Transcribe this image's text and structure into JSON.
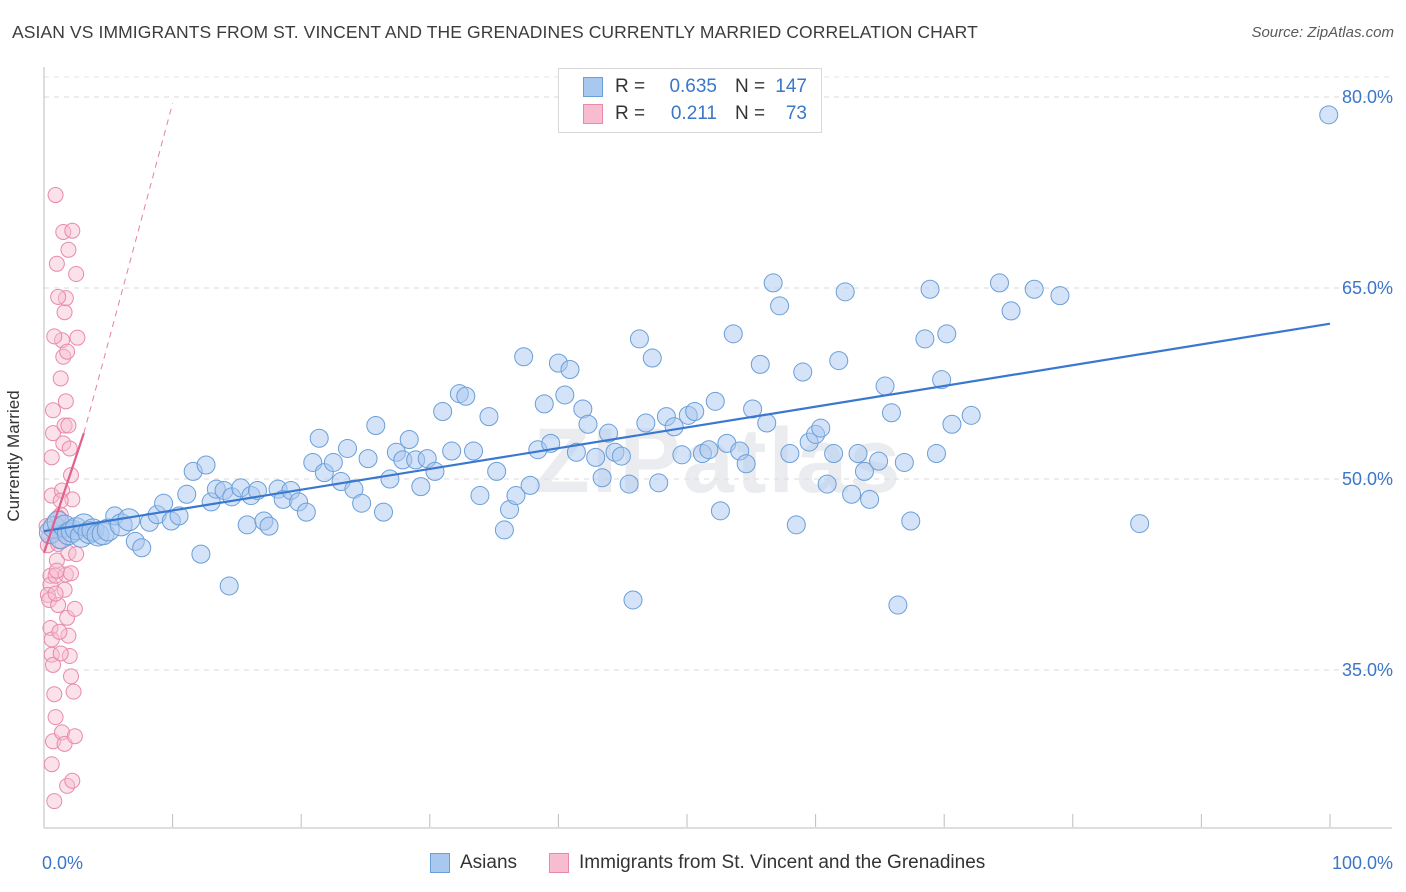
{
  "header": {
    "title": "ASIAN VS IMMIGRANTS FROM ST. VINCENT AND THE GRENADINES CURRENTLY MARRIED CORRELATION CHART",
    "source": "Source: ZipAtlas.com"
  },
  "legend_top": [
    {
      "r_label": "R =",
      "r_value": "0.635",
      "n_label": "N =",
      "n_value": "147",
      "color": "#a9c8f0",
      "edge": "#6a9fd8"
    },
    {
      "r_label": "R =",
      "r_value": "0.211",
      "n_label": "N =",
      "n_value": "73",
      "color": "#f7bcd0",
      "edge": "#e88aab"
    }
  ],
  "legend_bottom": [
    {
      "label": "Asians",
      "color": "#a9c8f0",
      "edge": "#6a9fd8"
    },
    {
      "label": "Immigrants from St. Vincent and the Grenadines",
      "color": "#f7bcd0",
      "edge": "#e88aab"
    }
  ],
  "watermark": "ZIPatlas",
  "chart_data": {
    "type": "scatter",
    "title": "ASIAN VS IMMIGRANTS FROM ST. VINCENT AND THE GRENADINES CURRENTLY MARRIED CORRELATION CHART",
    "xlabel": "",
    "ylabel": "Currently Married",
    "xlim": [
      0,
      100
    ],
    "ylim": [
      22,
      83
    ],
    "x_ticklabels": [
      "0.0%",
      "100.0%"
    ],
    "y_ticks": [
      35,
      50,
      65,
      80
    ],
    "y_ticklabels": [
      "35.0%",
      "50.0%",
      "65.0%",
      "80.0%"
    ],
    "grid": "horizontal dashed",
    "legend_position": "top-center",
    "colors": {
      "blue_fill": "#a9c8f0",
      "blue_edge": "#6a9fd8",
      "blue_line": "#3a78d0",
      "pink_fill": "#f7bcd0",
      "pink_edge": "#e88aab",
      "pink_line": "#e0608e",
      "tick_label": "#3b76c8"
    },
    "series": [
      {
        "name": "Asians",
        "trend": [
          [
            0,
            45.9
          ],
          [
            100,
            62.2
          ]
        ],
        "points": [
          [
            0.5,
            45.8,
            2
          ],
          [
            0.8,
            46.2,
            2
          ],
          [
            1.1,
            46.6,
            2
          ],
          [
            1.3,
            45.4,
            2
          ],
          [
            1.6,
            46.3,
            2
          ],
          [
            1.9,
            45.7,
            2
          ],
          [
            2.2,
            45.9,
            2
          ],
          [
            2.5,
            46.1,
            2
          ],
          [
            2.9,
            45.5,
            2
          ],
          [
            3.1,
            46.4,
            2
          ],
          [
            3.5,
            45.8,
            2
          ],
          [
            3.8,
            46.0,
            2
          ],
          [
            4.2,
            45.6,
            2
          ],
          [
            4.6,
            45.7,
            2
          ],
          [
            5.0,
            46.0,
            2
          ],
          [
            5.5,
            47.1,
            1
          ],
          [
            6.0,
            46.4,
            2
          ],
          [
            6.6,
            46.8,
            2
          ],
          [
            7.1,
            45.1,
            1
          ],
          [
            7.6,
            44.6,
            1
          ],
          [
            8.2,
            46.6,
            1
          ],
          [
            8.8,
            47.2,
            1
          ],
          [
            9.3,
            48.1,
            1
          ],
          [
            9.9,
            46.7,
            1
          ],
          [
            10.5,
            47.1,
            1
          ],
          [
            11.1,
            48.8,
            1
          ],
          [
            11.6,
            50.6,
            1
          ],
          [
            12.2,
            44.1,
            1
          ],
          [
            12.6,
            51.1,
            1
          ],
          [
            13.0,
            48.2,
            1
          ],
          [
            13.4,
            49.2,
            1
          ],
          [
            14.0,
            49.1,
            1
          ],
          [
            14.6,
            48.6,
            1
          ],
          [
            14.4,
            41.6,
            1
          ],
          [
            15.3,
            49.3,
            1
          ],
          [
            15.8,
            46.4,
            1
          ],
          [
            16.1,
            48.7,
            1
          ],
          [
            16.6,
            49.1,
            1
          ],
          [
            17.1,
            46.7,
            1
          ],
          [
            17.5,
            46.3,
            1
          ],
          [
            18.2,
            49.2,
            1
          ],
          [
            18.6,
            48.4,
            1
          ],
          [
            19.2,
            49.1,
            1
          ],
          [
            19.8,
            48.2,
            1
          ],
          [
            20.4,
            47.4,
            1
          ],
          [
            20.9,
            51.3,
            1
          ],
          [
            21.4,
            53.2,
            1
          ],
          [
            21.8,
            50.5,
            1
          ],
          [
            22.5,
            51.3,
            1
          ],
          [
            23.1,
            49.8,
            1
          ],
          [
            23.6,
            52.4,
            1
          ],
          [
            24.1,
            49.2,
            1
          ],
          [
            24.7,
            48.1,
            1
          ],
          [
            25.2,
            51.6,
            1
          ],
          [
            25.8,
            54.2,
            1
          ],
          [
            26.4,
            47.4,
            1
          ],
          [
            26.9,
            50.0,
            1
          ],
          [
            27.4,
            52.1,
            1
          ],
          [
            27.9,
            51.5,
            1
          ],
          [
            28.4,
            53.1,
            1
          ],
          [
            28.9,
            51.5,
            1
          ],
          [
            29.3,
            49.4,
            1
          ],
          [
            29.8,
            51.6,
            1
          ],
          [
            30.4,
            50.6,
            1
          ],
          [
            31.0,
            55.3,
            1
          ],
          [
            31.7,
            52.2,
            1
          ],
          [
            32.3,
            56.7,
            1
          ],
          [
            32.8,
            56.5,
            1
          ],
          [
            33.4,
            52.2,
            1
          ],
          [
            33.9,
            48.7,
            1
          ],
          [
            34.6,
            54.9,
            1
          ],
          [
            35.2,
            50.6,
            1
          ],
          [
            35.8,
            46.0,
            1
          ],
          [
            36.2,
            47.6,
            1
          ],
          [
            36.7,
            48.7,
            1
          ],
          [
            37.3,
            59.6,
            1
          ],
          [
            37.8,
            49.5,
            1
          ],
          [
            38.4,
            52.3,
            1
          ],
          [
            38.9,
            55.9,
            1
          ],
          [
            39.4,
            52.8,
            1
          ],
          [
            40.0,
            59.1,
            1
          ],
          [
            40.5,
            56.6,
            1
          ],
          [
            40.9,
            58.6,
            1
          ],
          [
            41.4,
            52.1,
            1
          ],
          [
            41.9,
            55.5,
            1
          ],
          [
            42.3,
            54.3,
            1
          ],
          [
            42.9,
            51.7,
            1
          ],
          [
            43.4,
            50.1,
            1
          ],
          [
            43.9,
            53.6,
            1
          ],
          [
            44.4,
            52.1,
            1
          ],
          [
            44.9,
            51.8,
            1
          ],
          [
            45.5,
            49.6,
            1
          ],
          [
            45.8,
            40.5,
            1
          ],
          [
            46.3,
            61.0,
            1
          ],
          [
            46.8,
            54.4,
            1
          ],
          [
            47.3,
            59.5,
            1
          ],
          [
            47.8,
            49.7,
            1
          ],
          [
            48.4,
            54.9,
            1
          ],
          [
            49.0,
            54.1,
            1
          ],
          [
            49.6,
            51.9,
            1
          ],
          [
            50.1,
            55.0,
            1
          ],
          [
            50.6,
            55.3,
            1
          ],
          [
            51.2,
            52.0,
            1
          ],
          [
            51.7,
            52.3,
            1
          ],
          [
            52.2,
            56.1,
            1
          ],
          [
            52.6,
            47.5,
            1
          ],
          [
            53.1,
            52.8,
            1
          ],
          [
            53.6,
            61.4,
            1
          ],
          [
            54.1,
            52.2,
            1
          ],
          [
            54.6,
            51.2,
            1
          ],
          [
            55.1,
            55.5,
            1
          ],
          [
            55.7,
            59.0,
            1
          ],
          [
            56.2,
            54.4,
            1
          ],
          [
            56.7,
            65.4,
            1
          ],
          [
            57.2,
            63.6,
            1
          ],
          [
            58.0,
            52.0,
            1
          ],
          [
            58.5,
            46.4,
            1
          ],
          [
            59.0,
            58.4,
            1
          ],
          [
            59.5,
            52.9,
            1
          ],
          [
            60.0,
            53.5,
            1
          ],
          [
            60.4,
            54.0,
            1
          ],
          [
            60.9,
            49.6,
            1
          ],
          [
            61.4,
            52.0,
            1
          ],
          [
            61.8,
            59.3,
            1
          ],
          [
            62.3,
            64.7,
            1
          ],
          [
            62.8,
            48.8,
            1
          ],
          [
            63.3,
            52.0,
            1
          ],
          [
            63.8,
            50.6,
            1
          ],
          [
            64.2,
            48.4,
            1
          ],
          [
            64.9,
            51.4,
            1
          ],
          [
            65.4,
            57.3,
            1
          ],
          [
            65.9,
            55.2,
            1
          ],
          [
            66.4,
            40.1,
            1
          ],
          [
            66.9,
            51.3,
            1
          ],
          [
            67.4,
            46.7,
            1
          ],
          [
            68.5,
            61.0,
            1
          ],
          [
            68.9,
            64.9,
            1
          ],
          [
            69.4,
            52.0,
            1
          ],
          [
            69.8,
            57.8,
            1
          ],
          [
            70.2,
            61.4,
            1
          ],
          [
            70.6,
            54.3,
            1
          ],
          [
            72.1,
            55.0,
            1
          ],
          [
            74.3,
            65.4,
            1
          ],
          [
            75.2,
            63.2,
            1
          ],
          [
            77.0,
            64.9,
            1
          ],
          [
            79.0,
            64.4,
            1
          ],
          [
            85.2,
            46.5,
            1
          ],
          [
            99.9,
            78.6,
            1
          ]
        ]
      },
      {
        "name": "Immigrants from St. Vincent and the Grenadines",
        "trend": [
          [
            0,
            44.2
          ],
          [
            3.1,
            53.6
          ]
        ],
        "trend_extension": [
          [
            3.1,
            53.6
          ],
          [
            10.0,
            79.5
          ]
        ],
        "points": [
          [
            0.2,
            46.3
          ],
          [
            0.3,
            44.8
          ],
          [
            0.4,
            45.5
          ],
          [
            0.5,
            42.4
          ],
          [
            0.5,
            41.7
          ],
          [
            0.6,
            48.7
          ],
          [
            0.6,
            51.7
          ],
          [
            0.7,
            53.6
          ],
          [
            0.7,
            55.4
          ],
          [
            0.3,
            40.9
          ],
          [
            0.4,
            40.5
          ],
          [
            0.5,
            38.3
          ],
          [
            0.6,
            37.4
          ],
          [
            0.6,
            36.2
          ],
          [
            0.7,
            35.4
          ],
          [
            0.8,
            33.1
          ],
          [
            0.9,
            31.3
          ],
          [
            0.7,
            29.4
          ],
          [
            0.6,
            27.6
          ],
          [
            0.8,
            24.7
          ],
          [
            0.9,
            42.4
          ],
          [
            1.0,
            43.6
          ],
          [
            1.1,
            44.9
          ],
          [
            1.2,
            45.8
          ],
          [
            1.3,
            47.2
          ],
          [
            1.4,
            49.1
          ],
          [
            1.5,
            52.8
          ],
          [
            1.6,
            54.2
          ],
          [
            1.7,
            56.1
          ],
          [
            1.3,
            57.9
          ],
          [
            1.5,
            59.6
          ],
          [
            1.4,
            60.9
          ],
          [
            1.6,
            63.1
          ],
          [
            1.7,
            64.2
          ],
          [
            1.0,
            66.9
          ],
          [
            1.5,
            69.4
          ],
          [
            1.9,
            68.0
          ],
          [
            0.9,
            72.3
          ],
          [
            2.5,
            66.1
          ],
          [
            2.6,
            61.1
          ],
          [
            2.2,
            69.5
          ],
          [
            0.8,
            61.2
          ],
          [
            1.1,
            64.3
          ],
          [
            1.8,
            60.0
          ],
          [
            1.9,
            54.2
          ],
          [
            2.0,
            52.4
          ],
          [
            2.1,
            50.3
          ],
          [
            2.2,
            48.4
          ],
          [
            2.0,
            46.0
          ],
          [
            1.9,
            44.2
          ],
          [
            1.7,
            42.5
          ],
          [
            1.6,
            41.3
          ],
          [
            1.8,
            39.1
          ],
          [
            1.9,
            37.7
          ],
          [
            2.0,
            36.1
          ],
          [
            2.1,
            34.5
          ],
          [
            1.4,
            30.1
          ],
          [
            1.6,
            29.2
          ],
          [
            1.8,
            25.9
          ],
          [
            2.3,
            33.3
          ],
          [
            2.4,
            29.8
          ],
          [
            2.2,
            26.3
          ],
          [
            1.1,
            40.1
          ],
          [
            1.2,
            38.0
          ],
          [
            1.3,
            36.3
          ],
          [
            0.9,
            41.0
          ],
          [
            1.0,
            42.8
          ],
          [
            1.2,
            45.1
          ],
          [
            1.1,
            47.0
          ],
          [
            1.3,
            48.3
          ],
          [
            2.1,
            42.6
          ],
          [
            2.4,
            39.8
          ],
          [
            2.5,
            44.1
          ]
        ]
      }
    ]
  }
}
